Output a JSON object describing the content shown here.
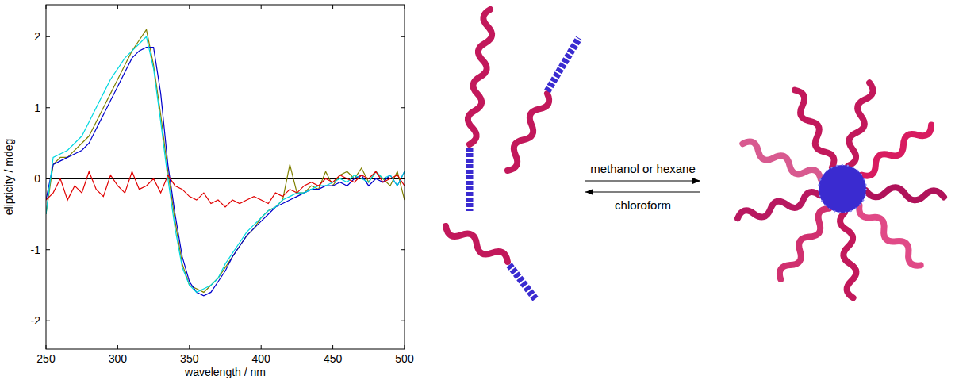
{
  "chart_data": {
    "type": "line",
    "x_label": "wavelength / nm",
    "y_label": "elipticity / mdeg",
    "xlim": [
      250,
      500
    ],
    "xticks": [
      250,
      300,
      350,
      400,
      450,
      500
    ],
    "ylim": [
      -2.4,
      2.45
    ],
    "yticks": [
      -2,
      -1,
      0,
      1,
      2
    ],
    "grid": false,
    "x": [
      250,
      255,
      260,
      265,
      270,
      275,
      280,
      285,
      290,
      295,
      300,
      305,
      310,
      315,
      320,
      325,
      330,
      335,
      340,
      345,
      350,
      355,
      360,
      365,
      370,
      375,
      380,
      385,
      390,
      395,
      400,
      405,
      410,
      415,
      420,
      425,
      430,
      435,
      440,
      445,
      450,
      455,
      460,
      465,
      470,
      475,
      480,
      485,
      490,
      495,
      500
    ],
    "series": [
      {
        "color": "#808000",
        "values": [
          -0.5,
          0.2,
          0.3,
          0.3,
          0.4,
          0.5,
          0.6,
          0.8,
          1.0,
          1.2,
          1.4,
          1.6,
          1.8,
          1.95,
          2.1,
          1.6,
          0.9,
          0.1,
          -0.6,
          -1.2,
          -1.5,
          -1.55,
          -1.6,
          -1.5,
          -1.4,
          -1.25,
          -1.1,
          -0.95,
          -0.8,
          -0.7,
          -0.55,
          -0.45,
          -0.4,
          -0.3,
          0.2,
          -0.2,
          -0.2,
          -0.1,
          -0.15,
          0.1,
          -0.1,
          0.05,
          0.1,
          0.0,
          0.15,
          -0.05,
          0.1,
          0.0,
          -0.1,
          0.1,
          -0.3
        ]
      },
      {
        "color": "#0000cc",
        "values": [
          -0.3,
          0.2,
          0.25,
          0.3,
          0.35,
          0.4,
          0.5,
          0.7,
          0.9,
          1.1,
          1.3,
          1.5,
          1.7,
          1.8,
          1.85,
          1.85,
          1.2,
          0.2,
          -0.5,
          -1.1,
          -1.45,
          -1.6,
          -1.65,
          -1.6,
          -1.45,
          -1.3,
          -1.1,
          -0.95,
          -0.8,
          -0.7,
          -0.6,
          -0.5,
          -0.4,
          -0.35,
          -0.3,
          -0.25,
          -0.2,
          -0.15,
          -0.15,
          -0.1,
          -0.1,
          -0.05,
          -0.1,
          0.0,
          0.05,
          -0.1,
          0.0,
          -0.05,
          0.05,
          -0.1,
          0.1
        ]
      },
      {
        "color": "#00d8e0",
        "values": [
          -0.5,
          0.3,
          0.35,
          0.4,
          0.5,
          0.6,
          0.8,
          1.0,
          1.2,
          1.4,
          1.55,
          1.7,
          1.8,
          1.9,
          2.0,
          1.55,
          0.8,
          0.0,
          -0.7,
          -1.25,
          -1.5,
          -1.6,
          -1.55,
          -1.5,
          -1.4,
          -1.2,
          -1.05,
          -0.9,
          -0.75,
          -0.65,
          -0.55,
          -0.45,
          -0.4,
          -0.3,
          -0.25,
          -0.2,
          -0.2,
          -0.15,
          -0.1,
          -0.1,
          -0.05,
          0.0,
          -0.05,
          0.05,
          0.0,
          -0.05,
          0.1,
          0.0,
          0.05,
          -0.1,
          0.1
        ]
      },
      {
        "color": "#e00000",
        "values": [
          -0.3,
          -0.2,
          0.0,
          -0.3,
          -0.1,
          -0.2,
          0.1,
          -0.15,
          -0.25,
          0.05,
          -0.1,
          -0.2,
          0.1,
          -0.15,
          -0.1,
          0.0,
          -0.2,
          0.05,
          -0.1,
          -0.15,
          -0.25,
          -0.3,
          -0.2,
          -0.35,
          -0.3,
          -0.4,
          -0.3,
          -0.35,
          -0.3,
          -0.25,
          -0.3,
          -0.35,
          -0.2,
          -0.25,
          -0.15,
          -0.2,
          -0.1,
          -0.05,
          -0.1,
          0.0,
          -0.05,
          0.05,
          0.0,
          -0.05,
          0.05,
          0.0,
          0.1,
          -0.05,
          0.0,
          0.05,
          -0.1
        ]
      }
    ]
  },
  "diagram": {
    "forward_label": "methanol or hexane",
    "backward_label": "chloroform"
  }
}
